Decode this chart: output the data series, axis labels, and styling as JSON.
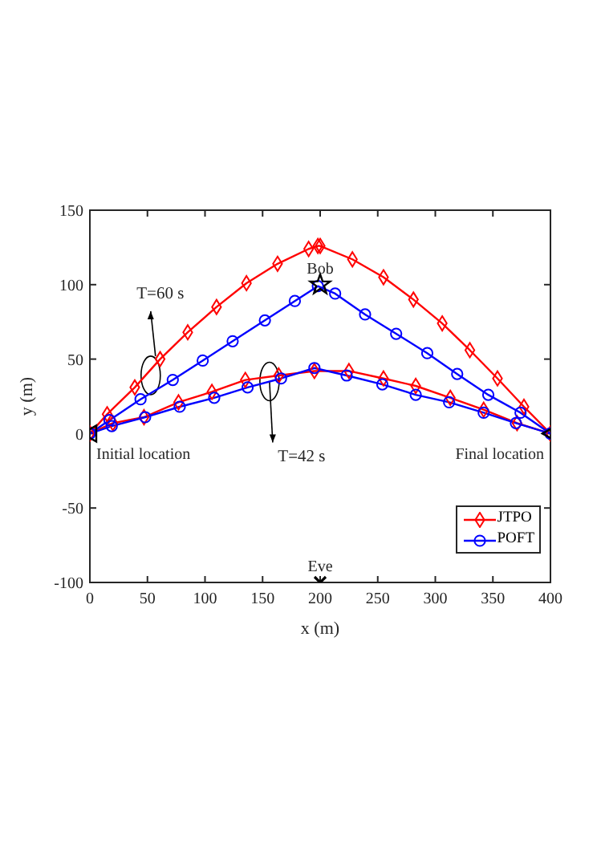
{
  "chart_data": {
    "type": "line",
    "xlabel": "x (m)",
    "ylabel": "y (m)",
    "xlim": [
      0,
      400
    ],
    "ylim": [
      -100,
      150
    ],
    "xticks": [
      0,
      50,
      100,
      150,
      200,
      250,
      300,
      350,
      400
    ],
    "yticks": [
      -100,
      -50,
      0,
      50,
      100,
      150
    ],
    "grid": false,
    "legend": "bottom right",
    "line_style": "solid",
    "series": [
      {
        "name": "JTPO",
        "color": "#ff0000",
        "marker": "diamond",
        "x": [
          0,
          15,
          39,
          61,
          85,
          110,
          136,
          163,
          190,
          198,
          200,
          228,
          255,
          281,
          306,
          330,
          354,
          377,
          400,
          null,
          0,
          20,
          47,
          77,
          106,
          135,
          164,
          195,
          225,
          255,
          283,
          313,
          342,
          371,
          400
        ],
        "values": [
          0,
          13,
          31,
          50,
          68,
          85,
          101,
          114,
          124,
          126,
          126,
          117,
          105,
          90,
          74,
          56,
          37,
          18,
          0,
          null,
          0,
          7,
          11,
          21,
          28,
          36,
          39,
          42,
          42,
          37,
          32,
          24,
          16,
          7,
          0
        ]
      },
      {
        "name": "POFT",
        "color": "#0000ff",
        "marker": "circle",
        "x": [
          0,
          17,
          44,
          72,
          98,
          124,
          152,
          178,
          198,
          213,
          239,
          266,
          293,
          319,
          346,
          374,
          400,
          null,
          0,
          19,
          48,
          78,
          108,
          137,
          166,
          195,
          223,
          254,
          283,
          312,
          342,
          370,
          400
        ],
        "values": [
          0,
          9,
          23,
          36,
          49,
          62,
          76,
          89,
          99,
          94,
          80,
          67,
          54,
          40,
          26,
          14,
          0,
          null,
          0,
          5,
          11,
          18,
          24,
          31,
          37,
          44,
          39,
          33,
          26,
          21,
          14,
          7,
          0
        ]
      },
      {
        "type": "scatter",
        "name": "Bob",
        "color": "#000000",
        "marker": "star",
        "x": [
          200
        ],
        "values": [
          100
        ]
      },
      {
        "type": "scatter",
        "name": "Eve",
        "color": "#000000",
        "marker": "cross",
        "x": [
          200
        ],
        "values": [
          -100
        ]
      },
      {
        "type": "scatter",
        "name": "Initial location",
        "color": "#000000",
        "marker": "triangle",
        "x": [
          0
        ],
        "values": [
          0
        ]
      },
      {
        "type": "scatter",
        "name": "Final location",
        "color": "#000000",
        "marker": "triangle",
        "x": [
          400
        ],
        "values": [
          0
        ]
      }
    ],
    "annotations": [
      {
        "text": "T=60 s",
        "x": 57,
        "y": 52
      },
      {
        "text": "T=42 s",
        "x": 156,
        "y": 35
      }
    ]
  }
}
